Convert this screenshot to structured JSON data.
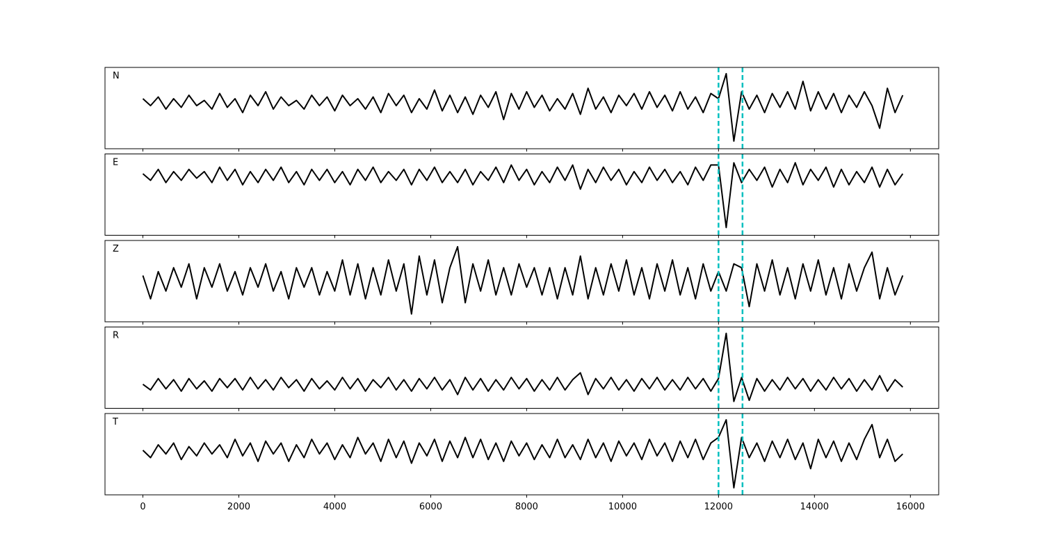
{
  "chart_data": {
    "type": "line",
    "x": [
      0,
      160,
      320,
      480,
      640,
      800,
      960,
      1120,
      1280,
      1440,
      1600,
      1760,
      1920,
      2080,
      2240,
      2400,
      2560,
      2720,
      2880,
      3040,
      3200,
      3360,
      3520,
      3680,
      3840,
      4000,
      4160,
      4320,
      4480,
      4640,
      4800,
      4960,
      5120,
      5280,
      5440,
      5600,
      5760,
      5920,
      6080,
      6240,
      6400,
      6560,
      6720,
      6880,
      7040,
      7200,
      7360,
      7520,
      7680,
      7840,
      8000,
      8160,
      8320,
      8480,
      8640,
      8800,
      8960,
      9120,
      9280,
      9440,
      9600,
      9760,
      9920,
      10080,
      10240,
      10400,
      10560,
      10720,
      10880,
      11040,
      11200,
      11360,
      11520,
      11680,
      11840,
      12000,
      12160,
      12320,
      12480,
      12640,
      12800,
      12960,
      13120,
      13280,
      13440,
      13600,
      13760,
      13920,
      14080,
      14240,
      14400,
      14560,
      14720,
      14880,
      15040,
      15200,
      15360,
      15520,
      15680,
      15840
    ],
    "xlim": [
      -790,
      16590
    ],
    "xticks": [
      0,
      2000,
      4000,
      6000,
      8000,
      10000,
      12000,
      14000,
      16000
    ],
    "line_color": "#000000",
    "vlines": [
      12000,
      12500
    ],
    "vline_color": "#00bfbf",
    "series": [
      {
        "name": "N",
        "ylim": [
          -1.34,
          1.0
        ],
        "values": [
          0.1,
          -0.1,
          0.15,
          -0.2,
          0.1,
          -0.15,
          0.2,
          -0.1,
          0.05,
          -0.2,
          0.25,
          -0.15,
          0.1,
          -0.3,
          0.2,
          -0.1,
          0.3,
          -0.2,
          0.15,
          -0.1,
          0.05,
          -0.2,
          0.2,
          -0.1,
          0.15,
          -0.25,
          0.2,
          -0.1,
          0.1,
          -0.2,
          0.15,
          -0.3,
          0.25,
          -0.1,
          0.2,
          -0.3,
          0.1,
          -0.2,
          0.35,
          -0.25,
          0.2,
          -0.3,
          0.15,
          -0.35,
          0.2,
          -0.15,
          0.3,
          -0.5,
          0.25,
          -0.2,
          0.3,
          -0.15,
          0.2,
          -0.25,
          0.1,
          -0.2,
          0.25,
          -0.35,
          0.4,
          -0.2,
          0.15,
          -0.3,
          0.2,
          -0.1,
          0.25,
          -0.2,
          0.3,
          -0.15,
          0.2,
          -0.25,
          0.3,
          -0.2,
          0.15,
          -0.3,
          0.25,
          0.1,
          0.82,
          -1.12,
          0.3,
          -0.2,
          0.2,
          -0.3,
          0.25,
          -0.15,
          0.3,
          -0.2,
          0.6,
          -0.25,
          0.3,
          -0.2,
          0.25,
          -0.3,
          0.2,
          -0.15,
          0.3,
          -0.1,
          -0.75,
          0.4,
          -0.3,
          0.2
        ]
      },
      {
        "name": "E",
        "ylim": [
          -2.69,
          1.0
        ],
        "values": [
          0.1,
          -0.2,
          0.3,
          -0.3,
          0.2,
          -0.2,
          0.3,
          -0.1,
          0.2,
          -0.3,
          0.4,
          -0.2,
          0.3,
          -0.4,
          0.2,
          -0.3,
          0.3,
          -0.2,
          0.4,
          -0.3,
          0.2,
          -0.4,
          0.3,
          -0.2,
          0.3,
          -0.3,
          0.2,
          -0.4,
          0.3,
          -0.2,
          0.4,
          -0.3,
          0.2,
          -0.2,
          0.3,
          -0.4,
          0.3,
          -0.2,
          0.4,
          -0.3,
          0.2,
          -0.3,
          0.3,
          -0.4,
          0.2,
          -0.2,
          0.4,
          -0.3,
          0.5,
          -0.2,
          0.3,
          -0.4,
          0.2,
          -0.3,
          0.4,
          -0.2,
          0.5,
          -0.6,
          0.3,
          -0.3,
          0.4,
          -0.2,
          0.3,
          -0.4,
          0.2,
          -0.3,
          0.4,
          -0.2,
          0.3,
          -0.3,
          0.2,
          -0.4,
          0.4,
          -0.2,
          0.5,
          0.5,
          -2.34,
          0.6,
          -0.3,
          0.3,
          -0.2,
          0.4,
          -0.5,
          0.3,
          -0.3,
          0.6,
          -0.4,
          0.3,
          -0.2,
          0.4,
          -0.5,
          0.3,
          -0.4,
          0.2,
          -0.3,
          0.4,
          -0.5,
          0.3,
          -0.4,
          0.1
        ]
      },
      {
        "name": "Z",
        "ylim": [
          -1.09,
          1.0
        ],
        "values": [
          0.1,
          -0.5,
          0.2,
          -0.3,
          0.3,
          -0.2,
          0.4,
          -0.5,
          0.3,
          -0.2,
          0.4,
          -0.3,
          0.2,
          -0.4,
          0.3,
          -0.2,
          0.4,
          -0.3,
          0.2,
          -0.5,
          0.3,
          -0.2,
          0.3,
          -0.4,
          0.2,
          -0.3,
          0.5,
          -0.4,
          0.4,
          -0.5,
          0.3,
          -0.4,
          0.5,
          -0.3,
          0.4,
          -0.89,
          0.6,
          -0.4,
          0.5,
          -0.6,
          0.3,
          0.84,
          -0.6,
          0.4,
          -0.3,
          0.5,
          -0.4,
          0.3,
          -0.4,
          0.4,
          -0.2,
          0.3,
          -0.4,
          0.3,
          -0.5,
          0.3,
          -0.4,
          0.6,
          -0.5,
          0.3,
          -0.4,
          0.4,
          -0.3,
          0.5,
          -0.4,
          0.3,
          -0.5,
          0.4,
          -0.3,
          0.5,
          -0.4,
          0.3,
          -0.5,
          0.4,
          -0.3,
          0.2,
          -0.3,
          0.4,
          0.3,
          -0.7,
          0.4,
          -0.3,
          0.5,
          -0.4,
          0.3,
          -0.5,
          0.4,
          -0.3,
          0.5,
          -0.4,
          0.3,
          -0.5,
          0.4,
          -0.3,
          0.3,
          0.7,
          -0.5,
          0.3,
          -0.4,
          0.1
        ]
      },
      {
        "name": "R",
        "ylim": [
          -0.42,
          1.0
        ],
        "values": [
          0.0,
          -0.1,
          0.1,
          -0.08,
          0.08,
          -0.12,
          0.1,
          -0.08,
          0.06,
          -0.12,
          0.1,
          -0.06,
          0.1,
          -0.1,
          0.12,
          -0.08,
          0.08,
          -0.1,
          0.12,
          -0.06,
          0.08,
          -0.12,
          0.1,
          -0.08,
          0.06,
          -0.1,
          0.12,
          -0.08,
          0.1,
          -0.12,
          0.08,
          -0.06,
          0.12,
          -0.1,
          0.08,
          -0.12,
          0.1,
          -0.08,
          0.12,
          -0.1,
          0.08,
          -0.18,
          0.12,
          -0.1,
          0.1,
          -0.12,
          0.08,
          -0.1,
          0.12,
          -0.08,
          0.1,
          -0.12,
          0.08,
          -0.1,
          0.12,
          -0.1,
          0.08,
          0.2,
          -0.18,
          0.1,
          -0.08,
          0.12,
          -0.1,
          0.08,
          -0.12,
          0.1,
          -0.08,
          0.12,
          -0.1,
          0.08,
          -0.1,
          0.12,
          -0.08,
          0.1,
          -0.12,
          0.1,
          0.89,
          -0.3,
          0.12,
          -0.28,
          0.1,
          -0.12,
          0.08,
          -0.1,
          0.12,
          -0.08,
          0.1,
          -0.12,
          0.08,
          -0.1,
          0.12,
          -0.08,
          0.1,
          -0.12,
          0.08,
          -0.1,
          0.15,
          -0.12,
          0.08,
          -0.05
        ]
      },
      {
        "name": "T",
        "ylim": [
          -1.21,
          1.0
        ],
        "values": [
          0.0,
          -0.2,
          0.15,
          -0.1,
          0.2,
          -0.25,
          0.1,
          -0.15,
          0.2,
          -0.1,
          0.15,
          -0.2,
          0.3,
          -0.15,
          0.2,
          -0.3,
          0.25,
          -0.1,
          0.2,
          -0.3,
          0.15,
          -0.2,
          0.3,
          -0.1,
          0.2,
          -0.25,
          0.15,
          -0.2,
          0.35,
          -0.1,
          0.2,
          -0.3,
          0.3,
          -0.2,
          0.25,
          -0.35,
          0.2,
          -0.15,
          0.3,
          -0.3,
          0.25,
          -0.2,
          0.35,
          -0.2,
          0.3,
          -0.25,
          0.2,
          -0.3,
          0.25,
          -0.15,
          0.2,
          -0.25,
          0.15,
          -0.2,
          0.3,
          -0.2,
          0.15,
          -0.25,
          0.3,
          -0.2,
          0.2,
          -0.3,
          0.25,
          -0.15,
          0.2,
          -0.25,
          0.3,
          -0.15,
          0.2,
          -0.3,
          0.25,
          -0.2,
          0.3,
          -0.25,
          0.2,
          0.35,
          0.83,
          -1.02,
          0.35,
          -0.2,
          0.2,
          -0.3,
          0.25,
          -0.2,
          0.3,
          -0.25,
          0.2,
          -0.5,
          0.3,
          -0.2,
          0.25,
          -0.3,
          0.2,
          -0.25,
          0.3,
          0.7,
          -0.2,
          0.3,
          -0.3,
          -0.1
        ]
      }
    ]
  }
}
